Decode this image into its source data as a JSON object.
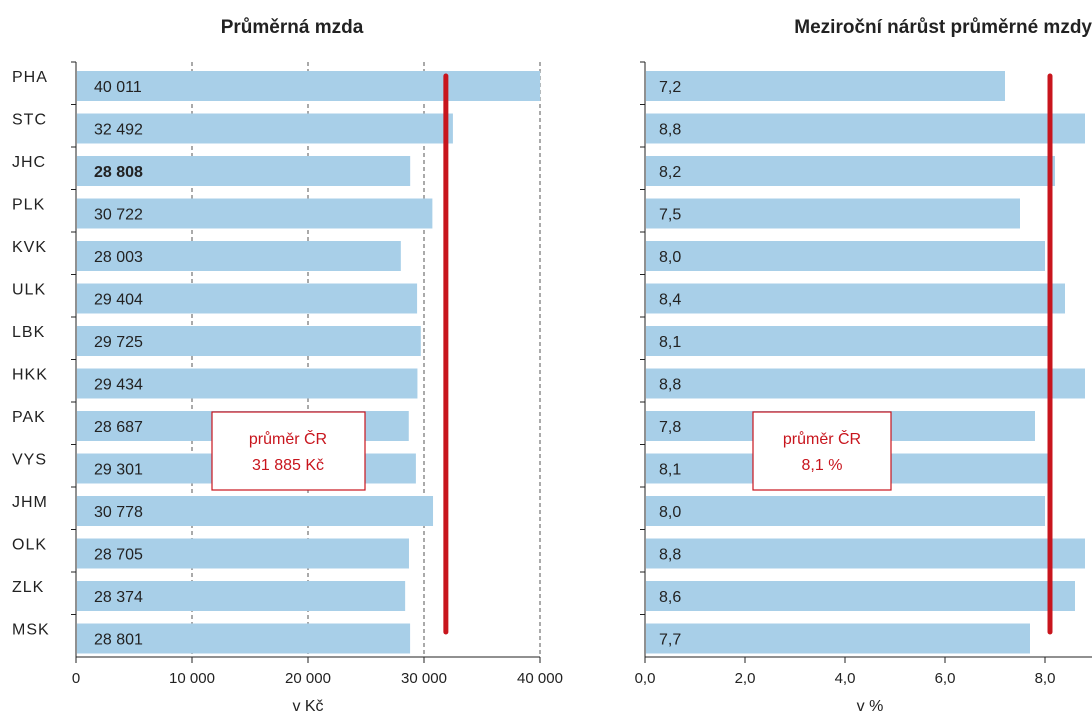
{
  "chart_data": [
    {
      "type": "bar",
      "orientation": "horizontal",
      "title": "Průměrná mzda",
      "xlabel": "v Kč",
      "categories": [
        "PHA",
        "STC",
        "JHC",
        "PLK",
        "KVK",
        "ULK",
        "LBK",
        "HKK",
        "PAK",
        "VYS",
        "JHM",
        "OLK",
        "ZLK",
        "MSK"
      ],
      "values": [
        40011,
        32492,
        28808,
        30722,
        28003,
        29404,
        29725,
        29434,
        28687,
        29301,
        30778,
        28705,
        28374,
        28801
      ],
      "value_labels": [
        "40 011",
        "32 492",
        "28 808",
        "30 722",
        "28 003",
        "29 404",
        "29 725",
        "29 434",
        "28 687",
        "29 301",
        "30 778",
        "28 705",
        "28 374",
        "28 801"
      ],
      "highlight_category": "JHC",
      "xlim": [
        0,
        40000
      ],
      "ticks": [
        0,
        10000,
        20000,
        30000,
        40000
      ],
      "tick_labels": [
        "0",
        "10 000",
        "20 000",
        "30 000",
        "40 000"
      ],
      "reference_line": {
        "value": 31885,
        "label_line1": "průměr ČR",
        "label_line2": "31 885 Kč"
      },
      "grid": "vertical dashed"
    },
    {
      "type": "bar",
      "orientation": "horizontal",
      "title": "Meziroční nárůst průměrné mzdy",
      "xlabel": "v %",
      "categories": [
        "PHA",
        "STC",
        "JHC",
        "PLK",
        "KVK",
        "ULK",
        "LBK",
        "HKK",
        "PAK",
        "VYS",
        "JHM",
        "OLK",
        "ZLK",
        "MSK"
      ],
      "values": [
        7.2,
        8.8,
        8.2,
        7.5,
        8.0,
        8.4,
        8.1,
        8.8,
        7.8,
        8.1,
        8.0,
        8.8,
        8.6,
        7.7
      ],
      "value_labels": [
        "7,2",
        "8,8",
        "8,2",
        "7,5",
        "8,0",
        "8,4",
        "8,1",
        "8,8",
        "7,8",
        "8,1",
        "8,0",
        "8,8",
        "8,6",
        "7,7"
      ],
      "xlim": [
        0,
        8.8
      ],
      "ticks": [
        0,
        2,
        4,
        6,
        8
      ],
      "tick_labels": [
        "0,0",
        "2,0",
        "4,0",
        "6,0",
        "8,0"
      ],
      "reference_line": {
        "value": 8.1,
        "label_line1": "průměr ČR",
        "label_line2": "8,1 %"
      },
      "grid": "none"
    }
  ],
  "colors": {
    "bar": "#a8cfe8",
    "reference": "#c8151d",
    "grid": "#555555"
  }
}
